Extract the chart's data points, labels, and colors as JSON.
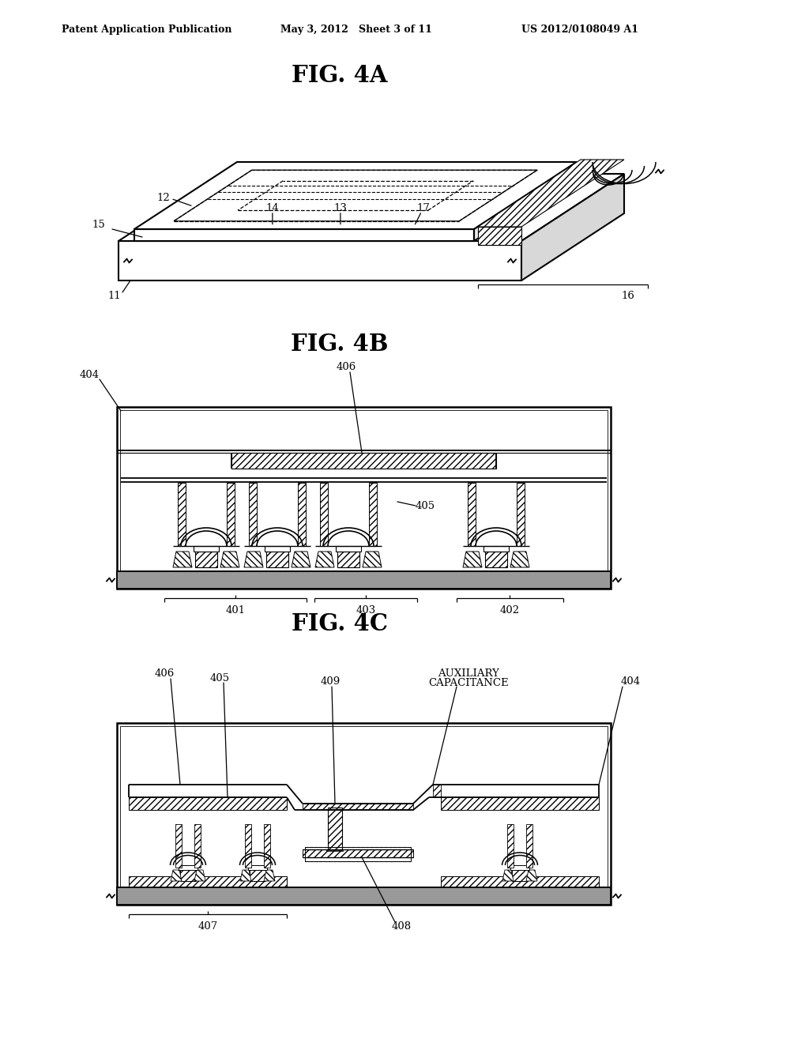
{
  "header_left": "Patent Application Publication",
  "header_mid": "May 3, 2012   Sheet 3 of 11",
  "header_right": "US 2012/0108049 A1",
  "fig4a_title": "FIG. 4A",
  "fig4b_title": "FIG. 4B",
  "fig4c_title": "FIG. 4C",
  "bg_color": "#ffffff",
  "line_color": "#000000"
}
